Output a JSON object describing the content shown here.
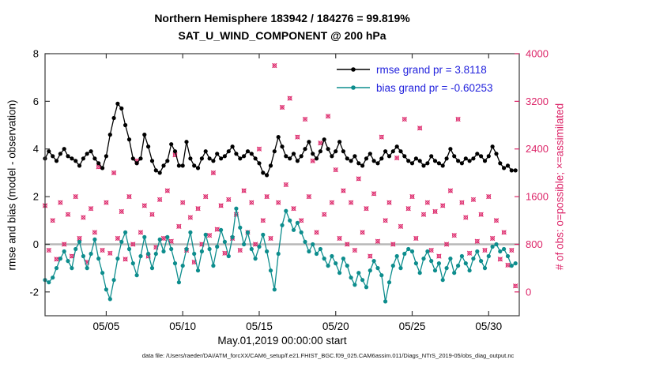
{
  "figure": {
    "caption": "data file: /Users/raeder/DAI/ATM_forcXX/CAM6_setup/f.e21.FHIST_BGC.f09_025.CAM6assim.011/Diags_NTrS_2019-05/obs_diag_output.nc"
  },
  "chart_data": {
    "type": "line",
    "title_line1": "Northern Hemisphere 183942 / 184276 = 99.819%",
    "title_line2": "SAT_U_WIND_COMPONENT @ 200 hPa",
    "xlabel": "May.01,2019 00:00:00 start",
    "ylabel_left": "rmse and bias (model - observation)",
    "ylabel_right": "# of obs: o=possible; ×=assimilated",
    "xlim": [
      1,
      32
    ],
    "ylim_left": [
      -3,
      8
    ],
    "ylim_right": [
      -400,
      4000
    ],
    "xticks": [
      5,
      10,
      15,
      20,
      25,
      30
    ],
    "xtick_labels": [
      "05/05",
      "05/10",
      "05/15",
      "05/20",
      "05/25",
      "05/30"
    ],
    "yticks_left": [
      -2,
      0,
      2,
      4,
      6,
      8
    ],
    "ytick_left_labels": [
      "-2",
      "0",
      "2",
      "4",
      "6",
      "8"
    ],
    "yticks_right": [
      0,
      800,
      1600,
      2400,
      3200,
      4000
    ],
    "ytick_right_labels": [
      "0",
      "800",
      "1600",
      "2400",
      "3200",
      "4000"
    ],
    "x_start": 1.0,
    "x_step": 0.25,
    "zero_line": {
      "y": 0,
      "color": "#b8b8b8"
    },
    "axis_color": "#3a3a3a",
    "tick_label_color": "#000000",
    "legend_text_color": "#2222dd",
    "series": [
      {
        "name": "rmse",
        "legend": "rmse grand pr = 3.8118",
        "color": "#000000",
        "axis": "left",
        "marker": "dot",
        "values": [
          3.6,
          3.9,
          3.7,
          3.5,
          3.8,
          4.0,
          3.7,
          3.6,
          3.5,
          3.3,
          3.6,
          3.8,
          3.9,
          3.6,
          3.4,
          3.2,
          3.7,
          4.6,
          5.3,
          5.9,
          5.7,
          5.0,
          4.4,
          3.6,
          3.4,
          3.6,
          4.6,
          4.1,
          3.5,
          3.1,
          3.0,
          3.3,
          3.5,
          4.2,
          3.9,
          3.3,
          3.3,
          4.3,
          3.6,
          3.3,
          3.2,
          3.6,
          3.9,
          3.6,
          3.5,
          3.8,
          3.6,
          3.7,
          3.9,
          4.1,
          3.8,
          3.6,
          3.7,
          3.9,
          3.8,
          3.6,
          3.4,
          3.0,
          2.9,
          3.3,
          3.9,
          4.5,
          4.1,
          3.7,
          3.6,
          3.8,
          3.5,
          3.7,
          4.0,
          4.3,
          3.8,
          3.6,
          3.9,
          4.4,
          4.0,
          3.7,
          3.9,
          4.3,
          3.9,
          3.6,
          3.5,
          3.7,
          3.4,
          3.3,
          3.6,
          3.8,
          3.5,
          3.4,
          3.6,
          3.9,
          3.7,
          3.9,
          4.1,
          3.9,
          3.7,
          3.5,
          3.4,
          3.6,
          3.5,
          3.3,
          3.4,
          3.7,
          3.5,
          3.4,
          3.3,
          3.6,
          4.0,
          3.7,
          3.5,
          3.4,
          3.6,
          3.5,
          3.6,
          3.8,
          3.7,
          3.5,
          3.7,
          4.1,
          3.8,
          3.4,
          3.2,
          3.3,
          3.1,
          3.1
        ]
      },
      {
        "name": "bias",
        "legend": "bias grand pr = -0.60253",
        "color": "#0d8d8d",
        "axis": "left",
        "marker": "dot",
        "values": [
          -1.5,
          -1.6,
          -1.4,
          -1.0,
          -0.6,
          -0.3,
          -0.7,
          -1.0,
          -0.2,
          0.1,
          -0.5,
          -1.0,
          -0.4,
          0.2,
          -0.6,
          -1.2,
          -1.9,
          -2.3,
          -1.5,
          -0.6,
          0.1,
          0.5,
          -0.2,
          -0.8,
          -1.3,
          -0.5,
          0.3,
          -0.4,
          -1.0,
          -0.4,
          0.2,
          -0.3,
          0.3,
          -0.2,
          -0.8,
          -1.6,
          -0.9,
          -0.2,
          0.5,
          -0.4,
          -1.1,
          -0.3,
          0.4,
          -0.2,
          -0.9,
          -0.1,
          0.6,
          0.1,
          -0.5,
          0.3,
          1.5,
          0.7,
          0.0,
          0.5,
          -0.2,
          -0.6,
          -0.1,
          0.4,
          -0.3,
          -1.1,
          -1.9,
          -0.4,
          0.8,
          1.4,
          1.0,
          0.6,
          0.9,
          0.5,
          0.1,
          -0.3,
          0.0,
          -0.4,
          -0.2,
          -0.6,
          -0.9,
          -0.5,
          -0.8,
          -1.2,
          -0.6,
          -0.9,
          -1.4,
          -1.7,
          -1.2,
          -1.5,
          -1.8,
          -1.1,
          -0.7,
          -1.0,
          -1.3,
          -2.4,
          -1.6,
          -0.9,
          -0.5,
          -1.0,
          -0.4,
          -0.2,
          -0.3,
          -0.8,
          -1.2,
          -0.6,
          -0.3,
          -0.7,
          -1.1,
          -0.8,
          -1.5,
          -1.0,
          -0.6,
          -1.2,
          -0.9,
          -0.5,
          -0.8,
          -1.1,
          -0.6,
          -0.3,
          -0.7,
          -1.0,
          -0.5,
          -0.1,
          0.0,
          -0.3,
          -0.2,
          -0.5,
          -0.9,
          -0.8
        ]
      },
      {
        "name": "obs_possible",
        "legend": null,
        "color": "#dc2468",
        "axis": "right",
        "marker": "asterisk",
        "values": [
          1450,
          700,
          1200,
          550,
          1500,
          800,
          1300,
          600,
          1600,
          900,
          1250,
          500,
          1400,
          1000,
          2100,
          700,
          1500,
          650,
          2000,
          900,
          1350,
          550,
          1600,
          800,
          2200,
          1000,
          1450,
          600,
          1300,
          750,
          1550,
          900,
          1700,
          850,
          2300,
          1100,
          1500,
          700,
          1250,
          500,
          1400,
          800,
          1600,
          950,
          2000,
          1050,
          1450,
          650,
          1550,
          900,
          1300,
          700,
          1700,
          1000,
          1500,
          800,
          2400,
          1200,
          1600,
          900,
          3800,
          1500,
          3100,
          1800,
          3250,
          1400,
          2600,
          1200,
          2900,
          1600,
          2200,
          1000,
          2500,
          1300,
          2950,
          1500,
          2050,
          900,
          1700,
          800,
          1500,
          700,
          1900,
          1000,
          1400,
          600,
          1650,
          850,
          2600,
          1200,
          1500,
          800,
          2250,
          1100,
          2900,
          1400,
          1600,
          900,
          2750,
          1300,
          1500,
          700,
          1350,
          600,
          1450,
          800,
          1700,
          950,
          2900,
          1500,
          1250,
          650,
          1550,
          850,
          1300,
          700,
          1600,
          900,
          1200,
          550,
          1000,
          450,
          700,
          100
        ]
      }
    ]
  }
}
